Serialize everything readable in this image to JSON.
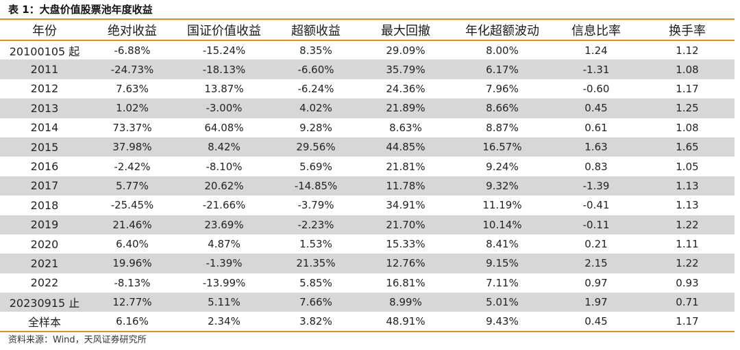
{
  "caption": "表 1：大盘价值股票池年度收益",
  "headers": [
    "年份",
    "绝对收益",
    "国证价值收益",
    "超额收益",
    "最大回撤",
    "年化超额波动",
    "信息比率",
    "换手率"
  ],
  "rows": [
    [
      "20100105 起",
      "-6.88%",
      "-15.24%",
      "8.35%",
      "29.09%",
      "8.00%",
      "1.24",
      "1.12"
    ],
    [
      "2011",
      "-24.73%",
      "-18.13%",
      "-6.60%",
      "35.79%",
      "6.17%",
      "-1.31",
      "1.08"
    ],
    [
      "2012",
      "7.63%",
      "13.87%",
      "-6.24%",
      "24.36%",
      "7.96%",
      "-0.60",
      "1.17"
    ],
    [
      "2013",
      "1.02%",
      "-3.00%",
      "4.02%",
      "21.89%",
      "8.66%",
      "0.45",
      "1.25"
    ],
    [
      "2014",
      "73.37%",
      "64.08%",
      "9.28%",
      "8.63%",
      "8.87%",
      "0.61",
      "1.08"
    ],
    [
      "2015",
      "37.98%",
      "8.42%",
      "29.56%",
      "44.85%",
      "16.57%",
      "1.63",
      "1.65"
    ],
    [
      "2016",
      "-2.42%",
      "-8.10%",
      "5.69%",
      "21.81%",
      "9.24%",
      "0.83",
      "1.05"
    ],
    [
      "2017",
      "5.77%",
      "20.62%",
      "-14.85%",
      "11.78%",
      "9.32%",
      "-1.39",
      "1.13"
    ],
    [
      "2018",
      "-25.45%",
      "-21.66%",
      "-3.79%",
      "34.91%",
      "11.19%",
      "-0.41",
      "1.13"
    ],
    [
      "2019",
      "21.46%",
      "23.69%",
      "-2.23%",
      "21.70%",
      "10.14%",
      "-0.11",
      "1.22"
    ],
    [
      "2020",
      "6.40%",
      "4.87%",
      "1.53%",
      "15.33%",
      "8.41%",
      "0.21",
      "1.11"
    ],
    [
      "2021",
      "19.96%",
      "-1.39%",
      "21.35%",
      "12.76%",
      "9.15%",
      "2.15",
      "1.22"
    ],
    [
      "2022",
      "-8.13%",
      "-13.99%",
      "5.85%",
      "16.81%",
      "7.11%",
      "0.97",
      "0.93"
    ],
    [
      "20230915 止",
      "12.77%",
      "5.11%",
      "7.66%",
      "8.99%",
      "5.01%",
      "1.97",
      "0.71"
    ],
    [
      "全样本",
      "6.16%",
      "2.34%",
      "3.82%",
      "48.91%",
      "9.43%",
      "0.45",
      "1.17"
    ]
  ],
  "colors": {
    "accent_rule": "#e58a1f",
    "row_shade": "#d7d7d7"
  },
  "source": "资料来源：Wind，天风证券研究所"
}
